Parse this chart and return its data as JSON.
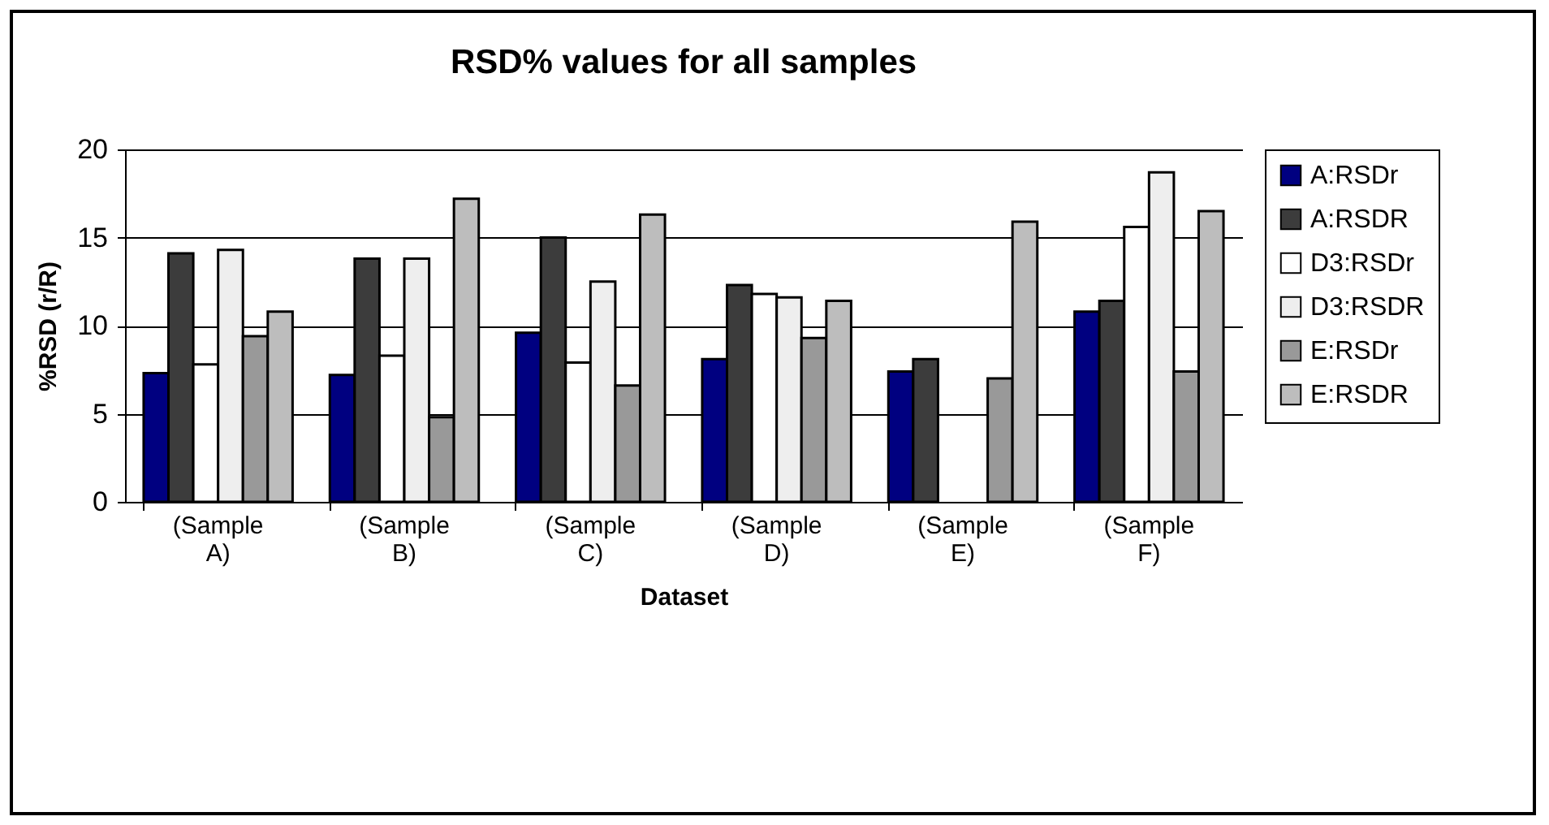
{
  "chart_data": {
    "type": "bar",
    "title": "RSD% values for all samples",
    "xlabel": "Dataset",
    "ylabel": "%RSD (r/R)",
    "categories": [
      "(Sample A)",
      "(Sample B)",
      "(Sample C)",
      "(Sample D)",
      "(Sample E)",
      "(Sample F)"
    ],
    "series": [
      {
        "name": "A:RSDr",
        "color": "#000080",
        "values": [
          7.3,
          7.2,
          9.6,
          8.1,
          7.4,
          10.8
        ]
      },
      {
        "name": "A:RSDR",
        "color": "#3c3c3c",
        "values": [
          14.1,
          13.8,
          15.0,
          12.3,
          8.1,
          11.4
        ]
      },
      {
        "name": "D3:RSDr",
        "color": "#ffffff",
        "values": [
          7.8,
          8.3,
          7.9,
          11.8,
          null,
          15.6
        ]
      },
      {
        "name": "D3:RSDR",
        "color": "#eeeeee",
        "values": [
          14.3,
          13.8,
          12.5,
          11.6,
          null,
          18.7
        ]
      },
      {
        "name": "E:RSDr",
        "color": "#999999",
        "values": [
          9.4,
          4.8,
          6.6,
          9.3,
          7.0,
          7.4
        ]
      },
      {
        "name": "E:RSDR",
        "color": "#bdbdbd",
        "values": [
          10.8,
          17.2,
          16.3,
          11.4,
          15.9,
          16.5
        ]
      }
    ],
    "ylim": [
      0,
      20
    ],
    "yticks": [
      0,
      5,
      10,
      15,
      20
    ],
    "grid": "y",
    "legend": "right"
  }
}
